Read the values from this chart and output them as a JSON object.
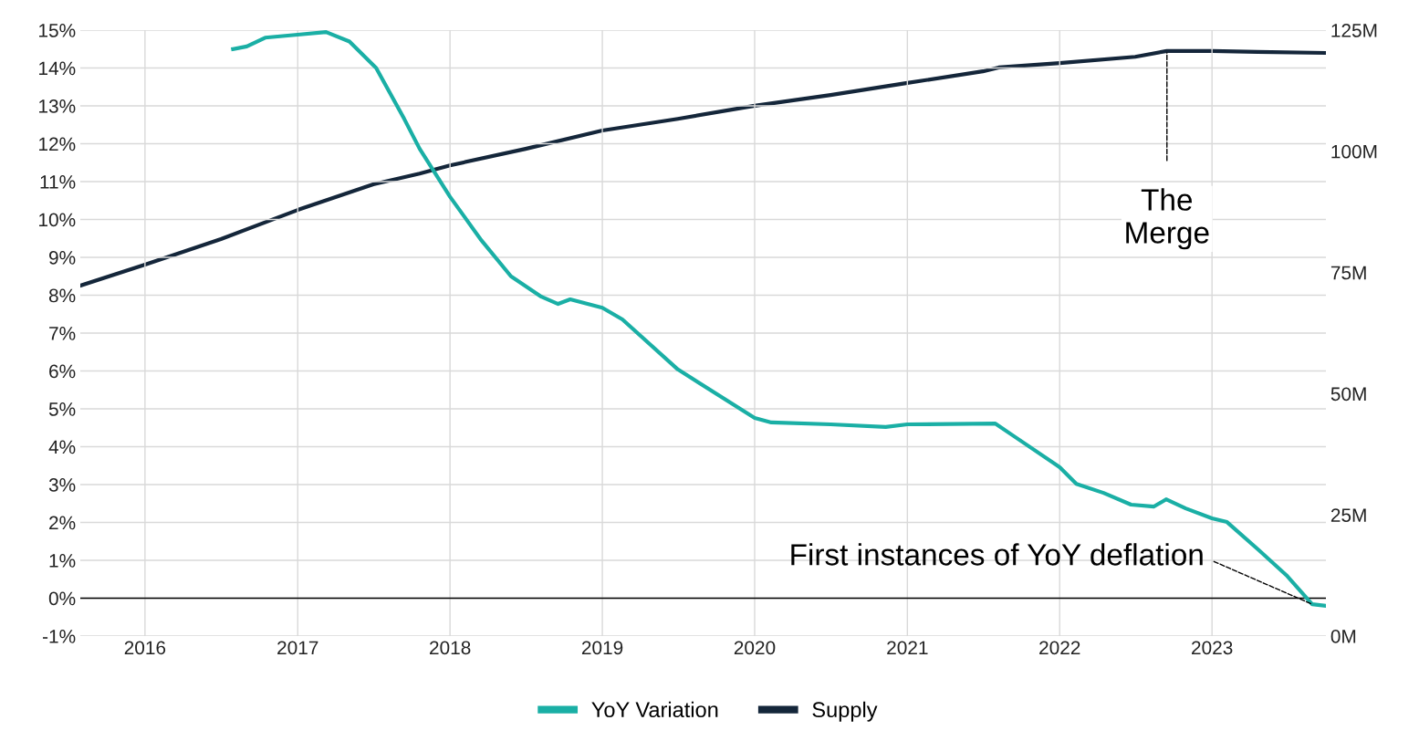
{
  "chart_data": {
    "type": "line",
    "xlim": [
      "2015-07-30",
      "2023-10-01"
    ],
    "xticks": [
      "2016",
      "2017",
      "2018",
      "2019",
      "2020",
      "2021",
      "2022",
      "2023"
    ],
    "ylim": [
      -1,
      15
    ],
    "yticks": [
      {
        "value": -1,
        "label": "-1%"
      },
      {
        "value": 0,
        "label": "0%"
      },
      {
        "value": 1,
        "label": "1%"
      },
      {
        "value": 2,
        "label": "2%"
      },
      {
        "value": 3,
        "label": "3%"
      },
      {
        "value": 4,
        "label": "4%"
      },
      {
        "value": 5,
        "label": "5%"
      },
      {
        "value": 6,
        "label": "6%"
      },
      {
        "value": 7,
        "label": "7%"
      },
      {
        "value": 8,
        "label": "8%"
      },
      {
        "value": 9,
        "label": "9%"
      },
      {
        "value": 10,
        "label": "10%"
      },
      {
        "value": 11,
        "label": "11%"
      },
      {
        "value": 12,
        "label": "12%"
      },
      {
        "value": 13,
        "label": "13%"
      },
      {
        "value": 14,
        "label": "14%"
      },
      {
        "value": 15,
        "label": "15%"
      }
    ],
    "y2lim": [
      0,
      125
    ],
    "y2ticks": [
      {
        "value": 0,
        "label": "0M"
      },
      {
        "value": 25,
        "label": "25M"
      },
      {
        "value": 50,
        "label": "50M"
      },
      {
        "value": 75,
        "label": "75M"
      },
      {
        "value": 100,
        "label": "100M"
      },
      {
        "value": 125,
        "label": "125M"
      }
    ],
    "grid": true,
    "legend": "bottom",
    "line_style": "solid",
    "marker": "none",
    "series": [
      {
        "name": "YoY Variation",
        "color": "#1aafa5",
        "x": [
          "2016-07-30",
          "2016-09-01",
          "2016-10-15",
          "2017-01-01",
          "2017-03-10",
          "2017-05-05",
          "2017-07-08",
          "2017-09-13",
          "2017-10-20",
          "2018-01-01",
          "2018-03-15",
          "2018-05-27",
          "2018-08-08",
          "2018-09-17",
          "2018-10-16",
          "2019-01-01",
          "2019-02-18",
          "2019-07-01",
          "2020-01-01",
          "2020-02-10",
          "2020-07-01",
          "2020-11-10",
          "2021-01-01",
          "2021-07-31",
          "2021-09-13",
          "2022-01-01",
          "2022-02-10",
          "2022-04-16",
          "2022-06-21",
          "2022-08-15",
          "2022-09-13",
          "2022-10-30",
          "2023-01-01",
          "2023-02-06",
          "2023-04-23",
          "2023-06-28",
          "2023-08-29",
          "2023-10-01"
        ],
        "values": [
          14.5,
          14.57,
          14.8,
          14.88,
          14.95,
          14.7,
          14.0,
          12.66,
          11.87,
          10.6,
          9.48,
          8.5,
          7.96,
          7.77,
          7.89,
          7.67,
          7.36,
          6.04,
          4.76,
          4.64,
          4.59,
          4.52,
          4.59,
          4.61,
          4.28,
          3.46,
          3.02,
          2.78,
          2.47,
          2.42,
          2.61,
          2.37,
          2.11,
          2.01,
          1.27,
          0.61,
          -0.16,
          -0.2
        ]
      },
      {
        "name": "Supply",
        "color": "#14263a",
        "axis": "y2",
        "x": [
          "2015-07-30",
          "2016-01-01",
          "2016-07-01",
          "2017-01-01",
          "2017-07-01",
          "2017-10-20",
          "2018-01-01",
          "2018-07-01",
          "2019-01-01",
          "2019-07-01",
          "2020-01-01",
          "2020-07-01",
          "2021-01-01",
          "2021-07-01",
          "2021-08-08",
          "2022-01-01",
          "2022-07-01",
          "2022-09-15",
          "2023-01-01",
          "2023-04-20",
          "2023-10-01"
        ],
        "values": [
          72.3,
          76.6,
          81.9,
          87.9,
          93.2,
          95.4,
          97.1,
          100.5,
          104.3,
          106.7,
          109.4,
          111.6,
          114.1,
          116.5,
          117.3,
          118.2,
          119.5,
          120.7,
          120.7,
          120.5,
          120.3
        ]
      }
    ],
    "ref_lines": [
      {
        "axis": "y",
        "value": 0,
        "color": "#000000",
        "line_style": "solid"
      }
    ],
    "annotations": [
      {
        "text": "The\nMerge",
        "x": "2022-09-15",
        "y": 14.4
      },
      {
        "text": "First instances of YoY deflation",
        "x": "2023-08-29",
        "y": -0.16
      }
    ]
  }
}
